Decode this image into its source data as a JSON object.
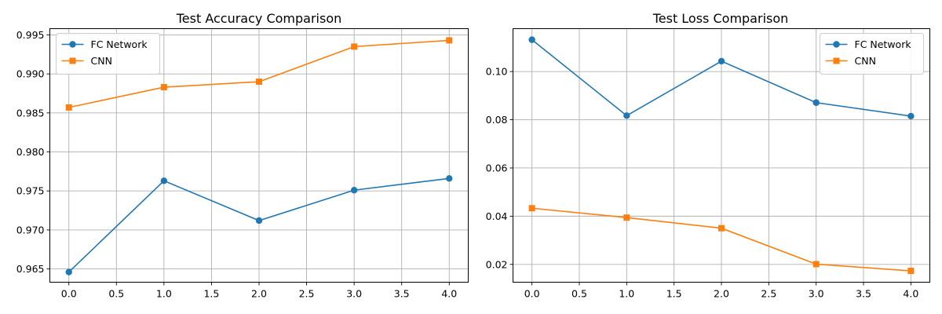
{
  "chart_data": [
    {
      "type": "line",
      "title": "Test Accuracy Comparison",
      "xlabel": "",
      "ylabel": "",
      "x": [
        0,
        1,
        2,
        3,
        4
      ],
      "xlim": [
        -0.2,
        4.2
      ],
      "ylim": [
        0.9633,
        0.9958
      ],
      "xticks": [
        "0.0",
        "0.5",
        "1.0",
        "1.5",
        "2.0",
        "2.5",
        "3.0",
        "3.5",
        "4.0"
      ],
      "yticks": [
        "0.965",
        "0.970",
        "0.975",
        "0.980",
        "0.985",
        "0.990",
        "0.995"
      ],
      "grid": true,
      "legend": "top-left",
      "series": [
        {
          "name": "FC Network",
          "color": "#1f77b4",
          "marker": "circle",
          "values": [
            0.9646,
            0.9763,
            0.9712,
            0.9751,
            0.9766
          ]
        },
        {
          "name": "CNN",
          "color": "#ff7f0e",
          "marker": "square",
          "values": [
            0.9857,
            0.9883,
            0.989,
            0.9935,
            0.9943
          ]
        }
      ]
    },
    {
      "type": "line",
      "title": "Test Loss Comparison",
      "xlabel": "",
      "ylabel": "",
      "x": [
        0,
        1,
        2,
        3,
        4
      ],
      "xlim": [
        -0.2,
        4.2
      ],
      "ylim": [
        0.0126,
        0.1178
      ],
      "xticks": [
        "0.0",
        "0.5",
        "1.0",
        "1.5",
        "2.0",
        "2.5",
        "3.0",
        "3.5",
        "4.0"
      ],
      "yticks": [
        "0.02",
        "0.04",
        "0.06",
        "0.08",
        "0.10"
      ],
      "grid": true,
      "legend": "top-right",
      "series": [
        {
          "name": "FC Network",
          "color": "#1f77b4",
          "marker": "circle",
          "values": [
            0.1132,
            0.0817,
            0.1043,
            0.0871,
            0.0815
          ]
        },
        {
          "name": "CNN",
          "color": "#ff7f0e",
          "marker": "square",
          "values": [
            0.0433,
            0.0394,
            0.035,
            0.0201,
            0.0173
          ]
        }
      ]
    }
  ]
}
